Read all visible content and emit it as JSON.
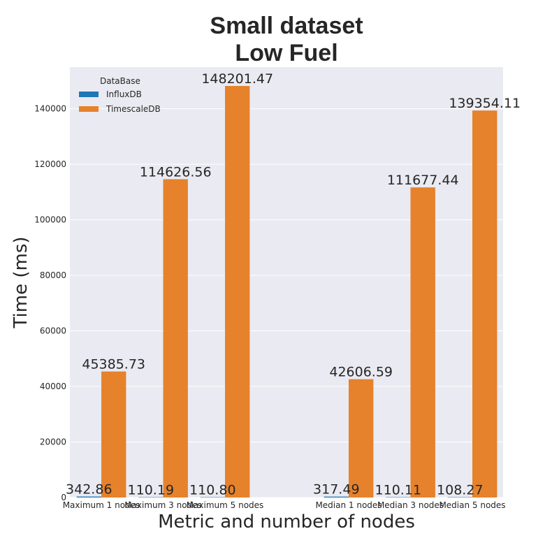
{
  "chart_data": {
    "type": "bar",
    "title": [
      "Small dataset",
      "Low Fuel"
    ],
    "xlabel": "Metric and number of nodes",
    "ylabel": "Time (ms)",
    "categories": [
      "Maximum 1 nodes",
      "Maximum 3 nodes",
      "Maximum 5 nodes",
      "",
      "Median 1 nodes",
      "Median 3 nodes",
      "Median 5 nodes"
    ],
    "series": [
      {
        "name": "InfluxDB",
        "color": "#1f77b4",
        "values": [
          342.86,
          110.19,
          110.8,
          null,
          317.49,
          110.11,
          108.27
        ]
      },
      {
        "name": "TimescaleDB",
        "color": "#e6822b",
        "values": [
          45385.73,
          114626.56,
          148201.47,
          null,
          42606.59,
          111677.44,
          139354.11
        ]
      }
    ],
    "bar_labels": [
      [
        "342.86",
        "110.19",
        "110.80",
        "",
        "317.49",
        "110.11",
        "108.27"
      ],
      [
        "45385.73",
        "114626.56",
        "148201.47",
        "",
        "42606.59",
        "111677.44",
        "139354.11"
      ]
    ],
    "ylim": [
      0,
      155000
    ],
    "yticks": [
      0,
      20000,
      40000,
      60000,
      80000,
      100000,
      120000,
      140000
    ],
    "legend": {
      "title": "DataBase",
      "placement": "top-left"
    },
    "grid": true,
    "background": "#eaeaf2"
  }
}
